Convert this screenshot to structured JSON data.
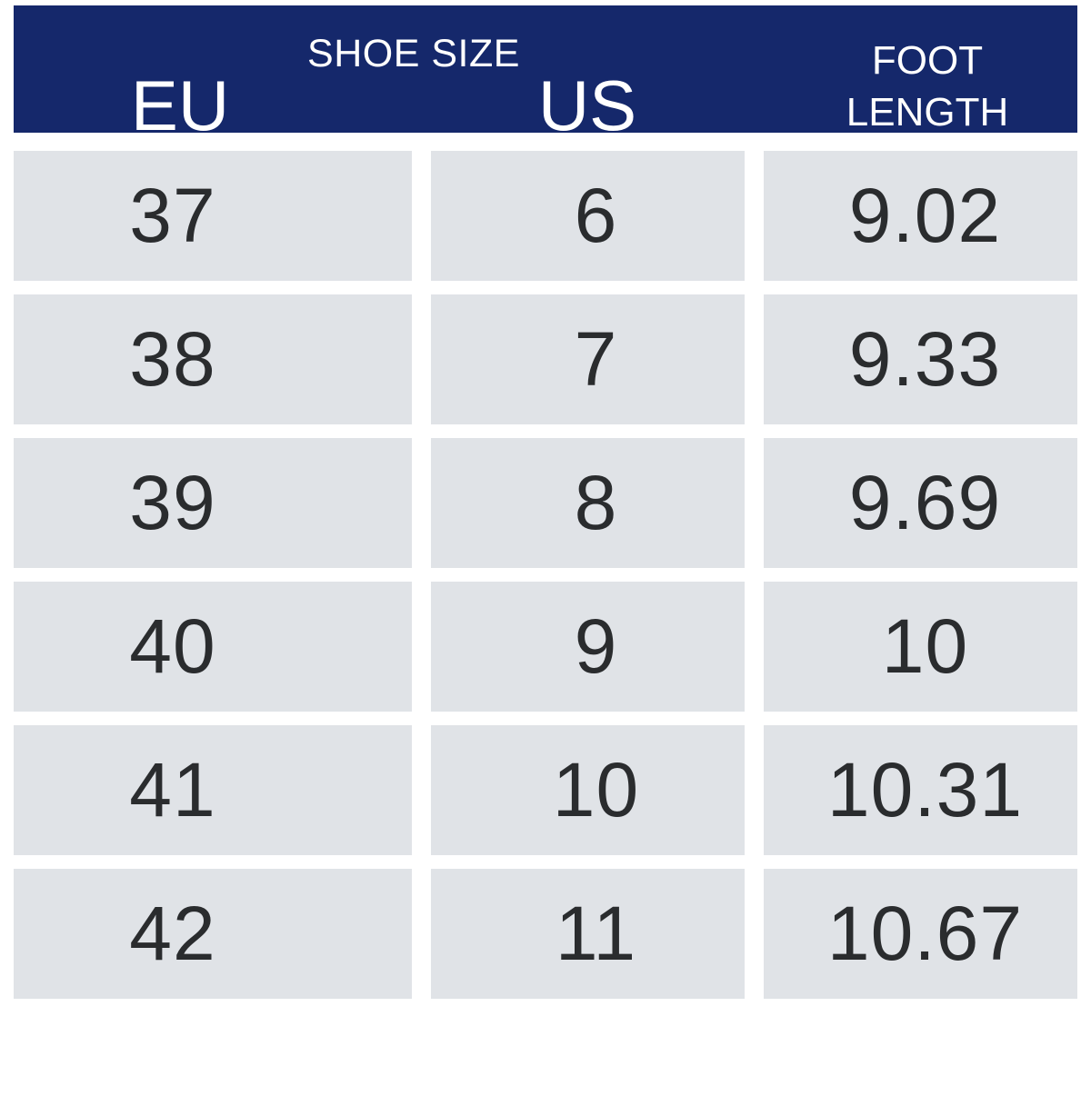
{
  "chart_data": {
    "type": "table",
    "title": "SHOE SIZE",
    "columns": [
      "EU",
      "US",
      "FOOT LENGTH"
    ],
    "rows": [
      [
        "37",
        "6",
        "9.02"
      ],
      [
        "38",
        "7",
        "9.33"
      ],
      [
        "39",
        "8",
        "9.69"
      ],
      [
        "40",
        "9",
        "10"
      ],
      [
        "41",
        "10",
        "10.31"
      ],
      [
        "42",
        "11",
        "10.67"
      ]
    ]
  },
  "colors": {
    "header_bg": "#15286B",
    "header_text": "#FFFFFF",
    "cell_bg": "#E0E3E7",
    "cell_text": "#2A2C2E",
    "page_bg": "#FFFFFF"
  }
}
